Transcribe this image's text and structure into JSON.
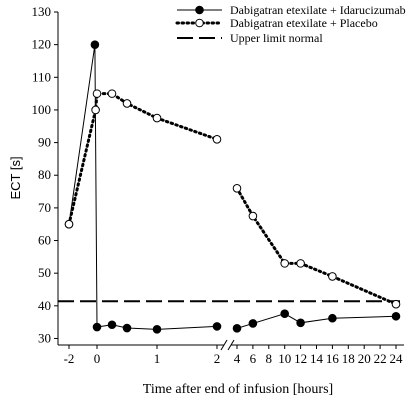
{
  "chart_data": {
    "type": "line",
    "xlabel": "Time after end of infusion [hours]",
    "ylabel": "ECT [s]",
    "ylim": [
      28,
      130
    ],
    "yticks": [
      30,
      40,
      50,
      60,
      70,
      80,
      90,
      100,
      110,
      120,
      130
    ],
    "xaxis_broken": true,
    "xticks_left": {
      "values": [
        -2,
        0,
        1,
        2
      ],
      "labels": [
        "-2",
        "0",
        "1",
        "2"
      ]
    },
    "xticks_right": {
      "values": [
        4,
        6,
        8,
        10,
        12,
        14,
        16,
        18,
        20,
        22,
        24
      ],
      "labels": [
        "4",
        "6",
        "8",
        "10",
        "12",
        "14",
        "16",
        "18",
        "20",
        "22",
        "24"
      ]
    },
    "legend_position": "top-right",
    "series": [
      {
        "name": "Dabigatran etexilate + Idarucizumab",
        "line_style": "solid",
        "marker": "filled-circle",
        "color": "#000000",
        "segments": [
          [
            {
              "x": -2,
              "y": 65
            },
            {
              "x": -0.15,
              "y": 120
            },
            {
              "x": 0,
              "y": 33.5
            },
            {
              "x": 0.25,
              "y": 34.2
            },
            {
              "x": 0.5,
              "y": 33.2
            },
            {
              "x": 1,
              "y": 32.8
            },
            {
              "x": 2,
              "y": 33.7
            }
          ],
          [
            {
              "x": 4,
              "y": 33.1
            },
            {
              "x": 6,
              "y": 34.6
            },
            {
              "x": 10,
              "y": 37.6
            },
            {
              "x": 12,
              "y": 34.8
            },
            {
              "x": 16,
              "y": 36.2
            },
            {
              "x": 24,
              "y": 36.8
            }
          ]
        ]
      },
      {
        "name": "Dabigatran etexilate + Placebo",
        "line_style": "dotted",
        "marker": "open-circle",
        "color": "#000000",
        "segments": [
          [
            {
              "x": -2,
              "y": 65
            },
            {
              "x": -0.1,
              "y": 100
            },
            {
              "x": 0,
              "y": 105
            },
            {
              "x": 0.25,
              "y": 105
            },
            {
              "x": 0.5,
              "y": 102
            },
            {
              "x": 1,
              "y": 97.5
            },
            {
              "x": 2,
              "y": 91
            }
          ],
          [
            {
              "x": 4,
              "y": 76
            },
            {
              "x": 6,
              "y": 67.5
            },
            {
              "x": 10,
              "y": 53
            },
            {
              "x": 12,
              "y": 53
            },
            {
              "x": 16,
              "y": 49
            },
            {
              "x": 24,
              "y": 40.5
            }
          ]
        ]
      },
      {
        "name": "Upper limit normal",
        "line_style": "dashed",
        "marker": "none",
        "color": "#000000",
        "y": 41.4
      }
    ]
  }
}
